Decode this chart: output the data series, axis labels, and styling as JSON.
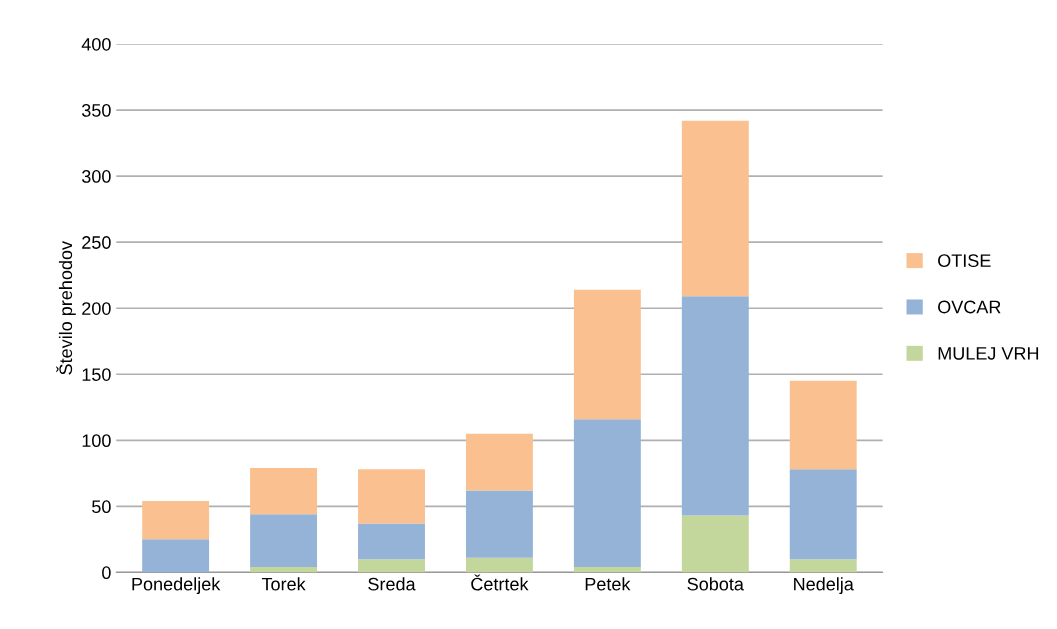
{
  "chart_data": {
    "type": "bar",
    "stacked": true,
    "ylabel": "Število prehodov",
    "categories": [
      "Ponedeljek",
      "Torek",
      "Sreda",
      "Četrtek",
      "Petek",
      "Sobota",
      "Nedelja"
    ],
    "series": [
      {
        "name": "MULEJ VRH",
        "color": "#c3d69b",
        "values": [
          0,
          4,
          10,
          11,
          4,
          43,
          10
        ]
      },
      {
        "name": "OVCAR",
        "color": "#95b3d7",
        "values": [
          25,
          40,
          27,
          51,
          112,
          166,
          68
        ]
      },
      {
        "name": "OTISE",
        "color": "#fac090",
        "values": [
          29,
          35,
          41,
          43,
          98,
          133,
          67
        ]
      }
    ],
    "ylim": [
      0,
      400
    ],
    "yticks": [
      0,
      50,
      100,
      150,
      200,
      250,
      300,
      350,
      400
    ],
    "grid": "y",
    "legend": "right"
  }
}
